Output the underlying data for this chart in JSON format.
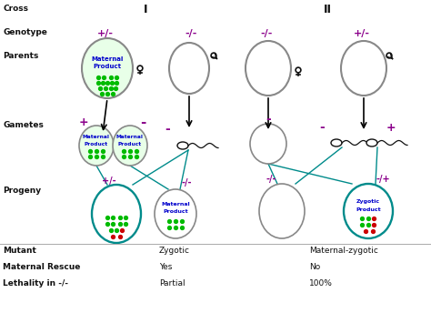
{
  "purple": "#8B008B",
  "teal": "#008B8B",
  "green": "#00BB00",
  "red": "#CC0000",
  "blue": "#0000CC",
  "black": "#111111",
  "gray_edge": "#888888",
  "cross_label": "Cross",
  "cross_I": "I",
  "cross_II": "II",
  "row_labels": [
    "Genotype",
    "Parents",
    "Gametes",
    "Progeny"
  ],
  "bottom_labels": [
    [
      "Mutant",
      "Zygotic",
      "Maternal-zygotic"
    ],
    [
      "Maternal Rescue",
      "Yes",
      "No"
    ],
    [
      "Lethality in -/-",
      "Partial",
      "100%"
    ]
  ],
  "figsize": [
    4.74,
    3.55
  ],
  "dpi": 100
}
